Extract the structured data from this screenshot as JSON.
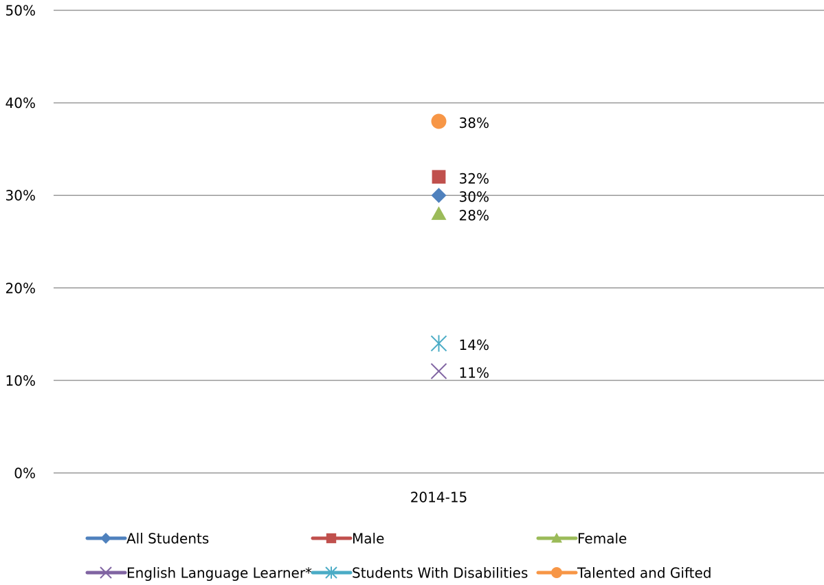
{
  "chart_data": {
    "type": "line",
    "categories": [
      "2014-15"
    ],
    "series": [
      {
        "name": "All Students",
        "color": "#4f81bd",
        "marker": "diamond",
        "values": [
          30
        ],
        "value_labels": [
          "30%"
        ]
      },
      {
        "name": "Male",
        "color": "#c0504d",
        "marker": "square",
        "values": [
          32
        ],
        "value_labels": [
          "32%"
        ]
      },
      {
        "name": "Female",
        "color": "#9bbb59",
        "marker": "triangle",
        "values": [
          28
        ],
        "value_labels": [
          "28%"
        ]
      },
      {
        "name": "English Language Learner*",
        "color": "#8064a2",
        "marker": "x",
        "values": [
          11
        ],
        "value_labels": [
          "11%"
        ]
      },
      {
        "name": "Students With Disabilities",
        "color": "#4bacc6",
        "marker": "star",
        "values": [
          14
        ],
        "value_labels": [
          "14%"
        ]
      },
      {
        "name": "Talented and Gifted",
        "color": "#f79646",
        "marker": "circle",
        "values": [
          38
        ],
        "value_labels": [
          "38%"
        ]
      }
    ],
    "ylim": [
      0,
      50
    ],
    "yticks": [
      {
        "value": 0,
        "label": "0%"
      },
      {
        "value": 10,
        "label": "10%"
      },
      {
        "value": 20,
        "label": "20%"
      },
      {
        "value": 30,
        "label": "30%"
      },
      {
        "value": 40,
        "label": "40%"
      },
      {
        "value": 50,
        "label": "50%"
      }
    ],
    "grid": true,
    "legend": "bottom"
  }
}
